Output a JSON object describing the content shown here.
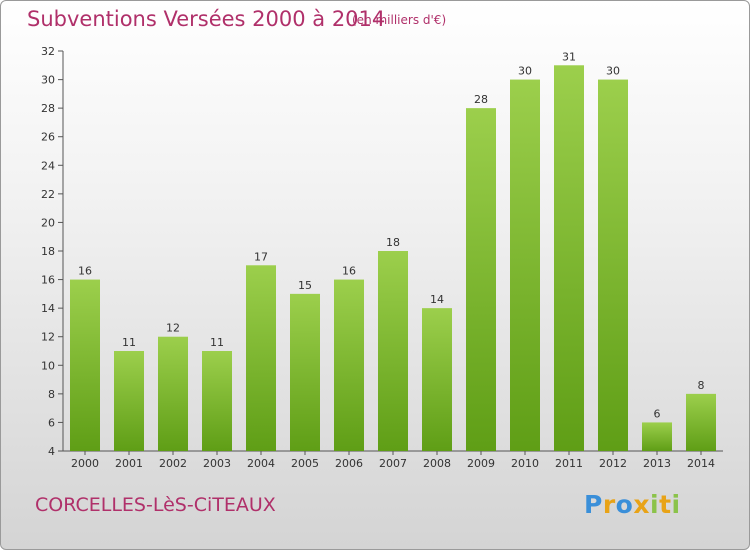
{
  "header": {
    "title": "Subventions Versées 2000 à 2014",
    "unit_note": "(en milliers d'€)"
  },
  "footer": {
    "commune": "CORCELLES-LèS-CiTEAUX",
    "logo_letters": [
      {
        "ch": "P",
        "color": "#3a8fd9"
      },
      {
        "ch": "r",
        "color": "#e8a317"
      },
      {
        "ch": "o",
        "color": "#3a8fd9"
      },
      {
        "ch": "x",
        "color": "#e8a317"
      },
      {
        "ch": "i",
        "color": "#8bc34a"
      },
      {
        "ch": "t",
        "color": "#e8a317"
      },
      {
        "ch": "i",
        "color": "#8bc34a"
      }
    ]
  },
  "chart_data": {
    "type": "bar",
    "categories": [
      "2000",
      "2001",
      "2002",
      "2003",
      "2004",
      "2005",
      "2006",
      "2007",
      "2008",
      "2009",
      "2010",
      "2011",
      "2012",
      "2013",
      "2014"
    ],
    "values": [
      16,
      11,
      12,
      11,
      17,
      15,
      16,
      18,
      14,
      28,
      30,
      31,
      30,
      6,
      8
    ],
    "ylim": [
      4,
      32
    ],
    "yticks": [
      4,
      6,
      8,
      10,
      12,
      14,
      16,
      18,
      20,
      22,
      24,
      26,
      28,
      30,
      32
    ],
    "grid": false,
    "bar_color_top": "#9ccf4c",
    "bar_color_bottom": "#5f9e16",
    "axis_color": "#555555",
    "label_color": "#333333"
  }
}
